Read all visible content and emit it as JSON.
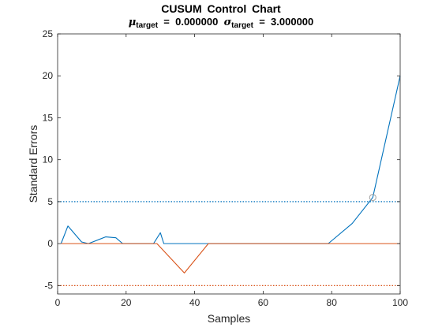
{
  "chart_data": {
    "type": "line",
    "title": "CUSUM  Control  Chart",
    "subtitle": {
      "mu_symbol": "μ",
      "mu_subscript": "target",
      "mu_value": "0.000000",
      "sigma_symbol": "σ",
      "sigma_subscript": "target",
      "sigma_value": "3.000000",
      "equals": "="
    },
    "xlabel": "Samples",
    "ylabel": "Standard Errors",
    "xlim": [
      0,
      100
    ],
    "ylim": [
      -6,
      25
    ],
    "xticks": [
      0,
      20,
      40,
      60,
      80,
      100
    ],
    "yticks": [
      -5,
      0,
      5,
      10,
      15,
      20,
      25
    ],
    "xtick_labels": [
      "0",
      "20",
      "40",
      "60",
      "80",
      "100"
    ],
    "ytick_labels": [
      "-5",
      "0",
      "5",
      "10",
      "15",
      "20",
      "25"
    ],
    "grid": false,
    "series": [
      {
        "color": "#0072BD",
        "x": [
          1,
          3,
          7,
          9,
          14,
          17,
          19,
          28,
          30,
          31,
          44,
          79,
          86,
          92,
          100
        ],
        "y": [
          0,
          2.1,
          0.2,
          0,
          0.8,
          0.7,
          0,
          0,
          1.3,
          0,
          0,
          0,
          2.4,
          5.5,
          20
        ]
      },
      {
        "color": "#D95319",
        "x": [
          1,
          29,
          37,
          44,
          100
        ],
        "y": [
          0,
          0,
          -3.5,
          0,
          0
        ]
      }
    ],
    "limits": [
      {
        "y": 5,
        "color": "#0072BD",
        "style": "dotted"
      },
      {
        "y": -5,
        "color": "#D95319",
        "style": "dotted"
      }
    ],
    "markers": [
      {
        "x": 92,
        "y": 5.5,
        "shape": "circle",
        "color": "#A0A0A0"
      }
    ]
  }
}
